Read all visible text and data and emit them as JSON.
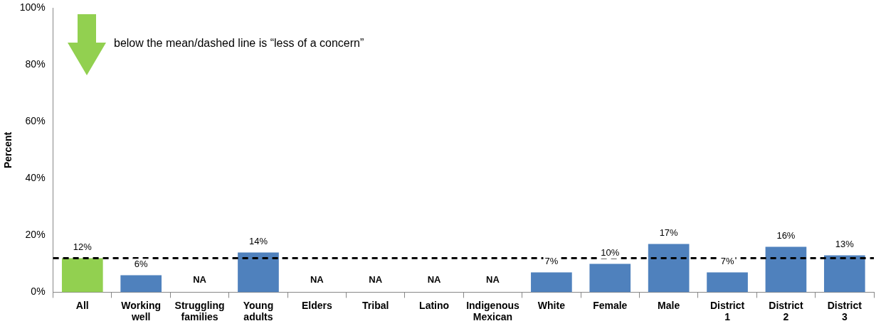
{
  "chart_data": {
    "type": "bar",
    "ylabel": "Percent",
    "categories": [
      "All",
      "Working well",
      "Struggling families",
      "Young adults",
      "Elders",
      "Tribal",
      "Latino",
      "Indigenous Mexican",
      "White",
      "Female",
      "Male",
      "District 1",
      "District 2",
      "District 3"
    ],
    "values": [
      12,
      6,
      null,
      14,
      null,
      null,
      null,
      null,
      7,
      10,
      17,
      7,
      16,
      13
    ],
    "colors": [
      "#92d050",
      "#4f81bd",
      "#4f81bd",
      "#4f81bd",
      "#4f81bd",
      "#4f81bd",
      "#4f81bd",
      "#4f81bd",
      "#4f81bd",
      "#4f81bd",
      "#4f81bd",
      "#4f81bd",
      "#4f81bd",
      "#4f81bd"
    ],
    "value_labels": [
      "12%",
      "6%",
      "NA",
      "14%",
      "NA",
      "NA",
      "NA",
      "NA",
      "7%",
      "10%",
      "17%",
      "7%",
      "16%",
      "13%"
    ],
    "ylim": [
      0,
      100
    ],
    "yticks": [
      {
        "value": 0,
        "label": "0%"
      },
      {
        "value": 20,
        "label": "20%"
      },
      {
        "value": 40,
        "label": "40%"
      },
      {
        "value": 60,
        "label": "60%"
      },
      {
        "value": 80,
        "label": "80%"
      },
      {
        "value": 100,
        "label": "100%"
      }
    ],
    "ref_lines": [
      {
        "axis": "y",
        "value": 12,
        "color": "#000000",
        "line_style": "dashed"
      }
    ],
    "annotations": [
      "below the mean/dashed line is “less of a concern”"
    ],
    "grid": false,
    "legend": false
  }
}
